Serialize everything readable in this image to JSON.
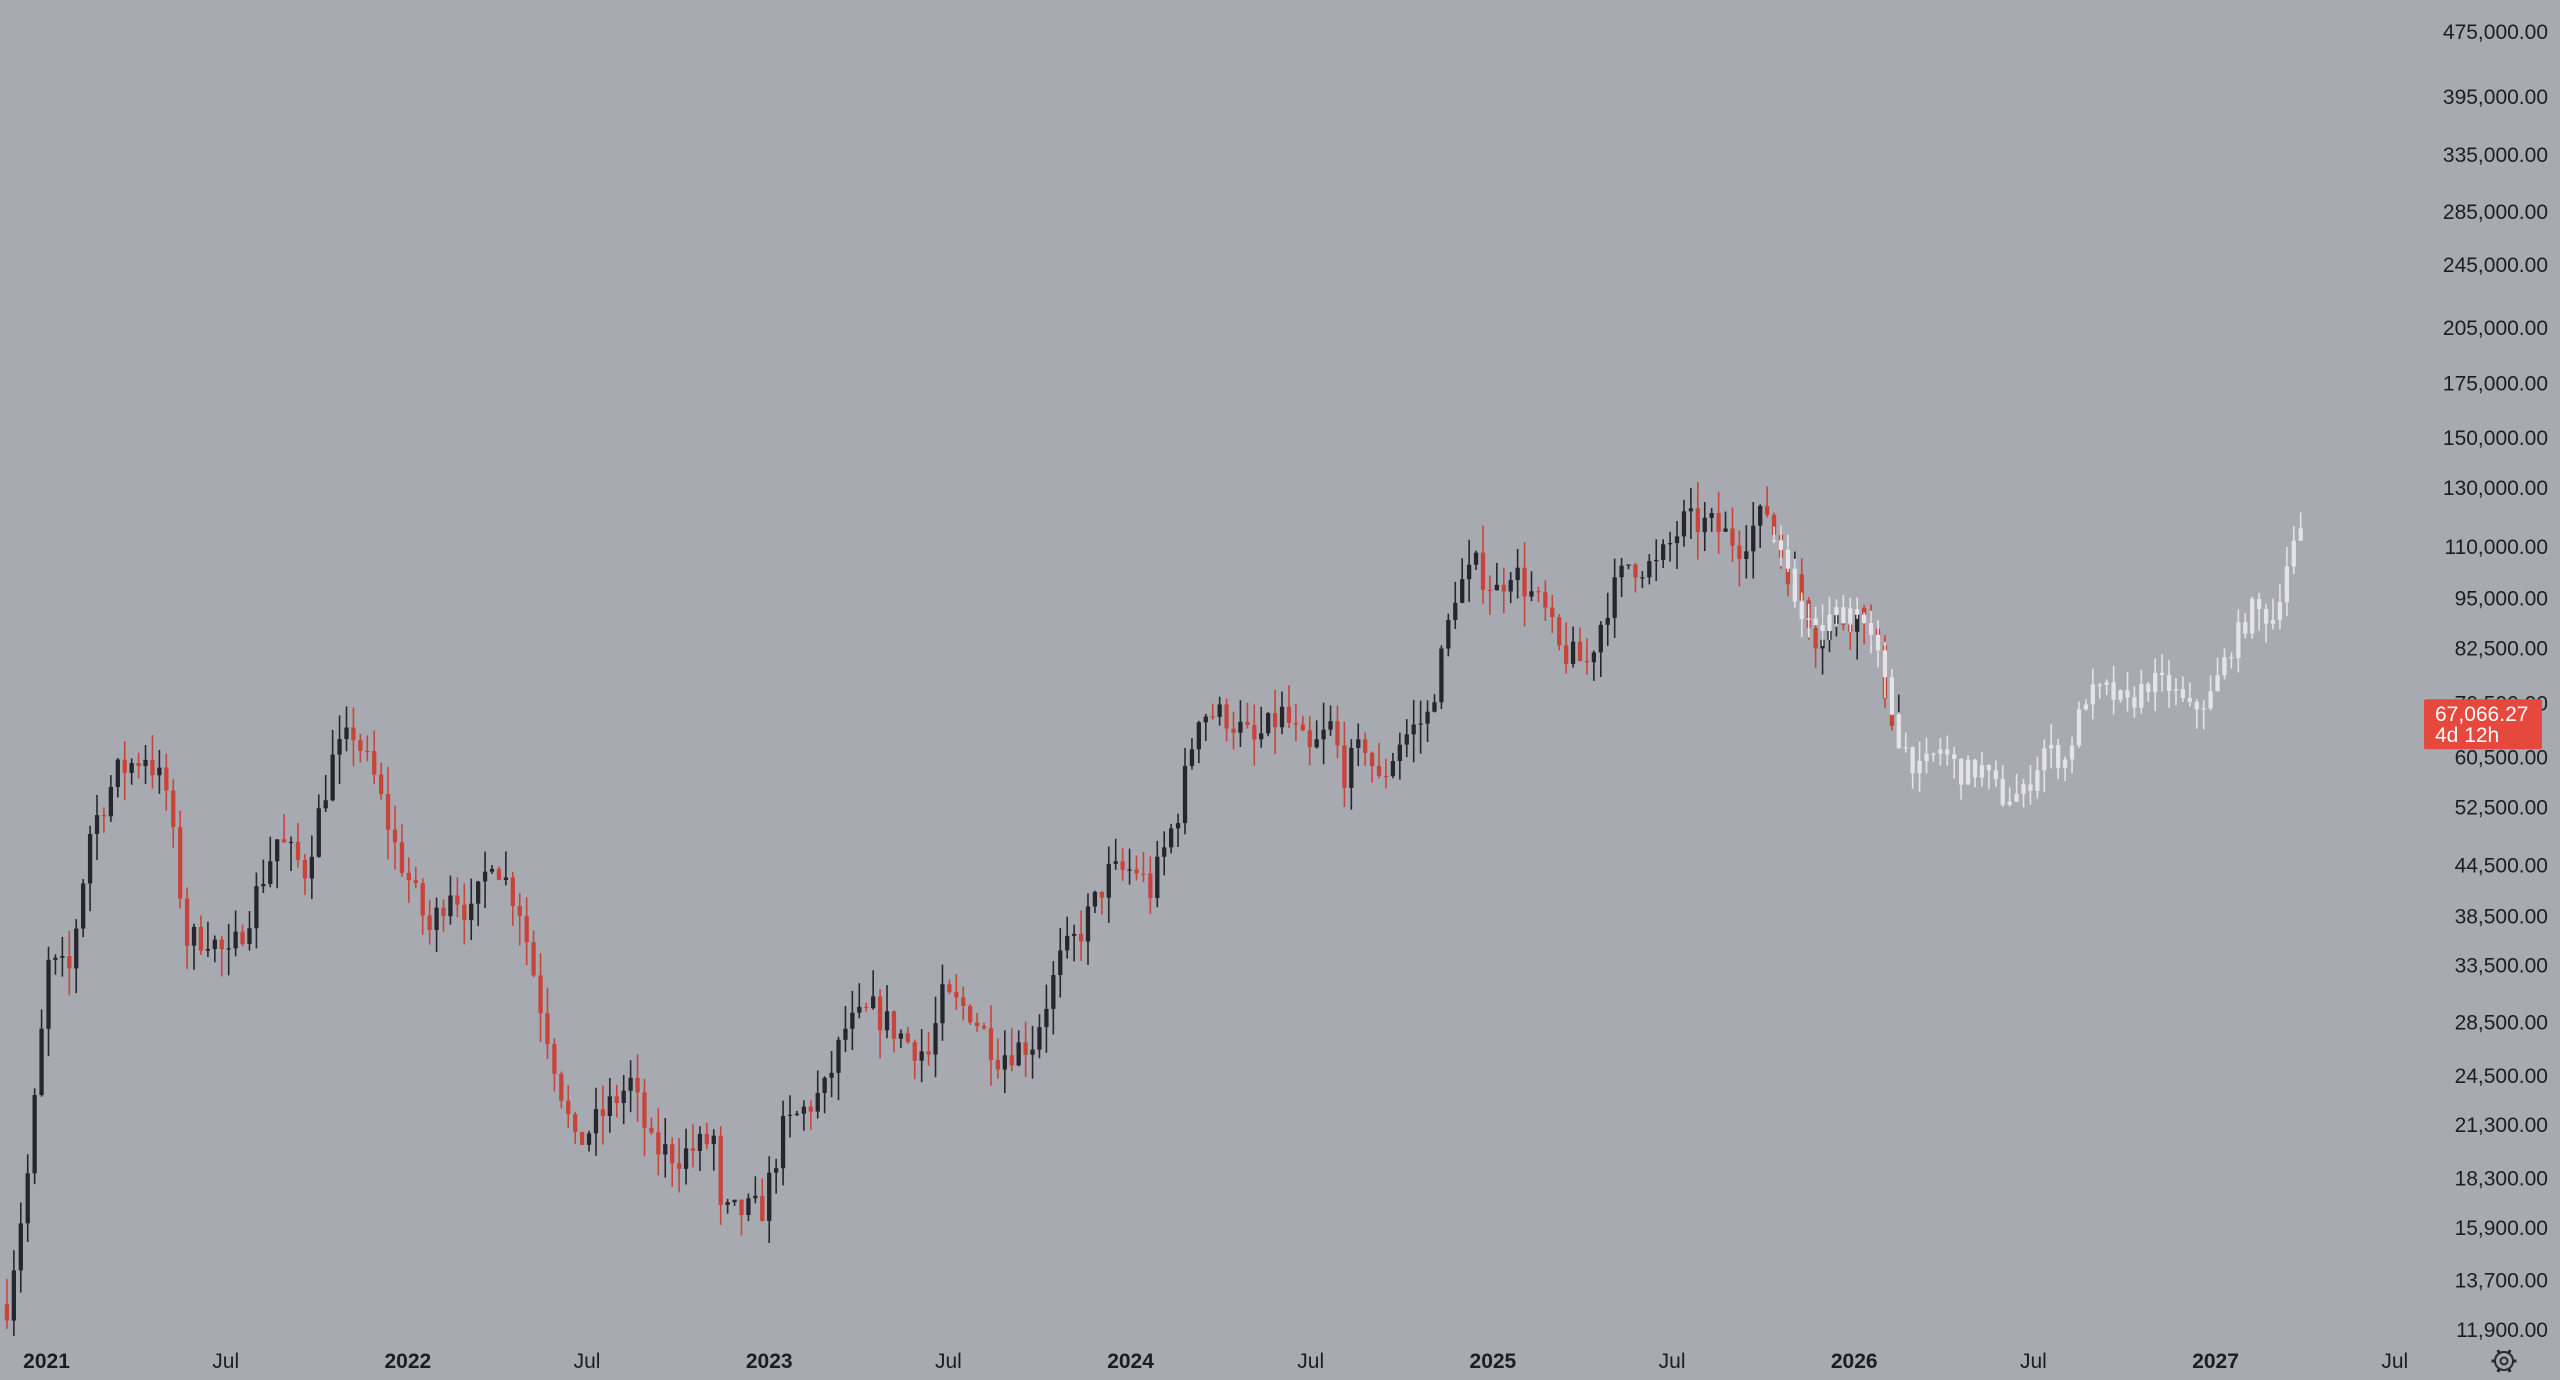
{
  "chart_data": {
    "type": "candlestick",
    "scale": "log",
    "grid": false,
    "ylim": [
      11900,
      475000
    ],
    "xlim": [
      "2020-11-15",
      "2027-09-15"
    ],
    "y_ticks": [
      "475,000.00",
      "395,000.00",
      "335,000.00",
      "285,000.00",
      "245,000.00",
      "205,000.00",
      "175,000.00",
      "150,000.00",
      "130,000.00",
      "110,000.00",
      "95,000.00",
      "82,500.00",
      "70,500.00",
      "60,500.00",
      "52,500.00",
      "44,500.00",
      "38,500.00",
      "33,500.00",
      "28,500.00",
      "24,500.00",
      "21,300.00",
      "18,300.00",
      "15,900.00",
      "13,700.00",
      "11,900.00"
    ],
    "x_ticks": [
      {
        "label": "2021",
        "date": "2021-01-01",
        "year": true
      },
      {
        "label": "Jul",
        "date": "2021-07-01",
        "year": false
      },
      {
        "label": "2022",
        "date": "2022-01-01",
        "year": true
      },
      {
        "label": "Jul",
        "date": "2022-07-01",
        "year": false
      },
      {
        "label": "2023",
        "date": "2023-01-01",
        "year": true
      },
      {
        "label": "Jul",
        "date": "2023-07-01",
        "year": false
      },
      {
        "label": "2024",
        "date": "2024-01-01",
        "year": true
      },
      {
        "label": "Jul",
        "date": "2024-07-01",
        "year": false
      },
      {
        "label": "2025",
        "date": "2025-01-01",
        "year": true
      },
      {
        "label": "Jul",
        "date": "2025-07-01",
        "year": false
      },
      {
        "label": "2026",
        "date": "2026-01-01",
        "year": true
      },
      {
        "label": "Jul",
        "date": "2026-07-01",
        "year": false
      },
      {
        "label": "2027",
        "date": "2027-01-01",
        "year": true
      },
      {
        "label": "Jul",
        "date": "2027-07-01",
        "year": false
      }
    ],
    "anchors": [
      [
        "2020-11-22",
        12800
      ],
      [
        "2020-12-13",
        18500
      ],
      [
        "2021-01-03",
        33500
      ],
      [
        "2021-01-24",
        33000
      ],
      [
        "2021-02-14",
        49000
      ],
      [
        "2021-03-14",
        58000
      ],
      [
        "2021-04-11",
        61000
      ],
      [
        "2021-05-02",
        55000
      ],
      [
        "2021-05-23",
        36000
      ],
      [
        "2021-06-13",
        36500
      ],
      [
        "2021-07-04",
        34000
      ],
      [
        "2021-07-25",
        39000
      ],
      [
        "2021-08-22",
        48000
      ],
      [
        "2021-09-19",
        44000
      ],
      [
        "2021-10-17",
        60000
      ],
      [
        "2021-11-07",
        65000
      ],
      [
        "2021-11-28",
        57000
      ],
      [
        "2021-12-19",
        47000
      ],
      [
        "2022-01-23",
        37000
      ],
      [
        "2022-02-13",
        42000
      ],
      [
        "2022-03-06",
        38500
      ],
      [
        "2022-03-27",
        46000
      ],
      [
        "2022-04-24",
        39500
      ],
      [
        "2022-05-15",
        30000
      ],
      [
        "2022-06-19",
        20000
      ],
      [
        "2022-07-24",
        22500
      ],
      [
        "2022-08-14",
        24000
      ],
      [
        "2022-09-04",
        20000
      ],
      [
        "2022-10-02",
        19500
      ],
      [
        "2022-11-06",
        20500
      ],
      [
        "2022-11-13",
        16500
      ],
      [
        "2022-12-25",
        16800
      ],
      [
        "2023-01-15",
        21000
      ],
      [
        "2023-02-26",
        23500
      ],
      [
        "2023-03-19",
        28000
      ],
      [
        "2023-04-16",
        29500
      ],
      [
        "2023-05-21",
        27000
      ],
      [
        "2023-06-11",
        26000
      ],
      [
        "2023-06-25",
        30500
      ],
      [
        "2023-07-23",
        29500
      ],
      [
        "2023-08-20",
        26000
      ],
      [
        "2023-09-24",
        27000
      ],
      [
        "2023-10-22",
        34000
      ],
      [
        "2023-11-12",
        37000
      ],
      [
        "2023-12-10",
        43500
      ],
      [
        "2024-01-07",
        44000
      ],
      [
        "2024-01-21",
        41500
      ],
      [
        "2024-02-18",
        52000
      ],
      [
        "2024-03-10",
        69000
      ],
      [
        "2024-04-07",
        68000
      ],
      [
        "2024-05-05",
        63000
      ],
      [
        "2024-06-02",
        68500
      ],
      [
        "2024-06-30",
        61000
      ],
      [
        "2024-07-21",
        66000
      ],
      [
        "2024-08-04",
        58000
      ],
      [
        "2024-08-25",
        63000
      ],
      [
        "2024-09-08",
        56000
      ],
      [
        "2024-09-29",
        63500
      ],
      [
        "2024-10-27",
        68000
      ],
      [
        "2024-11-10",
        80000
      ],
      [
        "2024-11-24",
        97000
      ],
      [
        "2024-12-15",
        104000
      ],
      [
        "2025-01-05",
        97000
      ],
      [
        "2025-01-19",
        104000
      ],
      [
        "2025-02-09",
        96000
      ],
      [
        "2025-02-23",
        91000
      ],
      [
        "2025-03-09",
        82000
      ],
      [
        "2025-04-06",
        79000
      ],
      [
        "2025-04-27",
        94000
      ],
      [
        "2025-05-18",
        105000
      ],
      [
        "2025-06-15",
        104000
      ],
      [
        "2025-07-13",
        118000
      ],
      [
        "2025-08-10",
        117000
      ],
      [
        "2025-09-07",
        111000
      ],
      [
        "2025-10-05",
        122000
      ],
      [
        "2025-10-19",
        108000
      ],
      [
        "2025-11-09",
        95000
      ],
      [
        "2025-11-23",
        86000
      ],
      [
        "2025-12-14",
        89000
      ],
      [
        "2026-01-11",
        92000
      ],
      [
        "2026-01-25",
        80000
      ],
      [
        "2026-02-08",
        68000
      ],
      [
        "2026-02-15",
        67066.27
      ]
    ],
    "projection_anchors": [
      [
        "2025-10-12",
        112000
      ],
      [
        "2025-11-02",
        95000
      ],
      [
        "2025-11-23",
        86000
      ],
      [
        "2025-12-14",
        91000
      ],
      [
        "2026-01-04",
        93000
      ],
      [
        "2026-01-25",
        80000
      ],
      [
        "2026-02-15",
        64000
      ],
      [
        "2026-03-08",
        58000
      ],
      [
        "2026-03-29",
        62000
      ],
      [
        "2026-04-19",
        58000
      ],
      [
        "2026-05-10",
        58500
      ],
      [
        "2026-05-31",
        54000
      ],
      [
        "2026-06-21",
        54500
      ],
      [
        "2026-07-12",
        62000
      ],
      [
        "2026-08-02",
        60000
      ],
      [
        "2026-08-23",
        72000
      ],
      [
        "2026-09-13",
        73000
      ],
      [
        "2026-10-04",
        70000
      ],
      [
        "2026-10-25",
        75000
      ],
      [
        "2026-11-15",
        74000
      ],
      [
        "2026-12-06",
        69000
      ],
      [
        "2026-12-27",
        72000
      ],
      [
        "2027-01-17",
        83000
      ],
      [
        "2027-02-07",
        92000
      ],
      [
        "2027-02-28",
        90000
      ],
      [
        "2027-03-14",
        105000
      ],
      [
        "2027-03-28",
        116000
      ]
    ],
    "current_price": {
      "value": 67066.27,
      "label": "67,066.27",
      "countdown": "4d 12h"
    },
    "colors": {
      "background": "#a8aab2",
      "up": "#26272d",
      "down": "#c8443a",
      "projection": "#e4e4e8",
      "price_label_bg": "#e5483c",
      "text": "#1c1d22"
    },
    "settings_icon": "gear-icon"
  }
}
